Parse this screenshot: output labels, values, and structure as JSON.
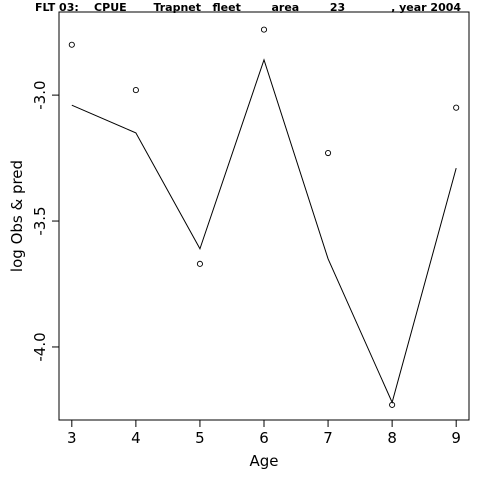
{
  "chart_data": {
    "type": "line",
    "title": "FLT 03:    CPUE       Trapnet   fleet        area        23            , year 2004",
    "xlabel": "Age",
    "ylabel": "log Obs & pred",
    "x": [
      3,
      4,
      5,
      6,
      7,
      8,
      9
    ],
    "xlim": [
      2.8,
      9.2
    ],
    "ylim": [
      -4.29,
      -2.67
    ],
    "x_ticks": [
      3,
      4,
      5,
      6,
      7,
      8,
      9
    ],
    "y_ticks": [
      -3.0,
      -3.5,
      -4.0
    ],
    "y_tick_labels": [
      "-3.0",
      "-3.5",
      "-4.0"
    ],
    "grid": false,
    "series": [
      {
        "kind": "points",
        "marker": "open-circle",
        "values": [
          -2.8,
          -2.98,
          -3.67,
          -2.74,
          -3.23,
          -4.23,
          -3.05
        ]
      },
      {
        "kind": "line",
        "values": [
          -3.04,
          -3.15,
          -3.61,
          -2.86,
          -3.65,
          -4.22,
          -3.29
        ]
      }
    ]
  }
}
